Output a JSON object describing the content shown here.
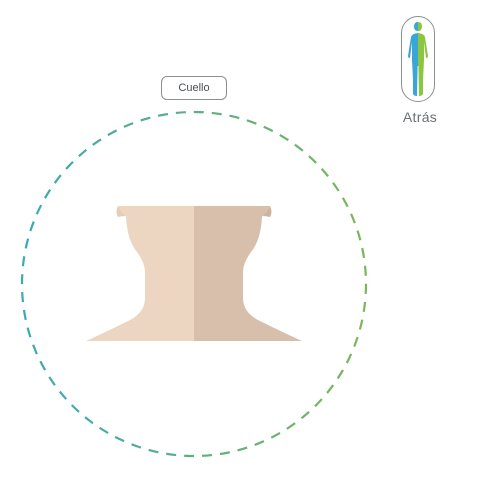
{
  "region": {
    "label": "Cuello"
  },
  "view_toggle": {
    "label": "Atrás",
    "icon": "body-silhouette-icon"
  },
  "colors": {
    "ring_left": "#3aa9b8",
    "ring_right": "#7bb65a",
    "skin_light": "#ecd6c2",
    "skin_shadow": "#d8bfab",
    "figure_blue": "#3aa6d8",
    "figure_green": "#8cc63f",
    "border_gray": "#8a8f93"
  }
}
